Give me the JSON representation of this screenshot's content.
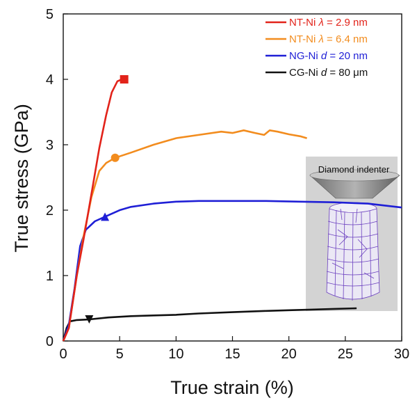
{
  "chart_data": {
    "type": "line",
    "xlabel": "True strain (%)",
    "ylabel": "True stress (GPa)",
    "xlim": [
      0,
      30
    ],
    "ylim": [
      0,
      5
    ],
    "xticks": [
      0,
      5,
      10,
      15,
      20,
      25,
      30
    ],
    "yticks": [
      0,
      1,
      2,
      3,
      4,
      5
    ],
    "grid": false,
    "legend_position": "top-right",
    "series": [
      {
        "name_parts": [
          "NT-Ni ",
          "λ",
          " = 2.9 nm"
        ],
        "color": "#e2231a",
        "marker": "square",
        "marker_at": [
          5.4,
          4.0
        ],
        "points": [
          [
            0,
            0
          ],
          [
            0.5,
            0.2
          ],
          [
            1.2,
            1.0
          ],
          [
            1.8,
            1.55
          ],
          [
            2.5,
            2.25
          ],
          [
            3.2,
            2.95
          ],
          [
            3.8,
            3.45
          ],
          [
            4.3,
            3.8
          ],
          [
            4.8,
            3.97
          ],
          [
            5.2,
            4.0
          ],
          [
            5.6,
            4.0
          ]
        ]
      },
      {
        "name_parts": [
          "NT-Ni ",
          "λ",
          " = 6.4 nm"
        ],
        "color": "#f28c1e",
        "marker": "circle",
        "marker_at": [
          4.6,
          2.8
        ],
        "points": [
          [
            0,
            0
          ],
          [
            0.5,
            0.2
          ],
          [
            1.2,
            1.0
          ],
          [
            1.8,
            1.6
          ],
          [
            2.5,
            2.2
          ],
          [
            3.2,
            2.6
          ],
          [
            3.8,
            2.72
          ],
          [
            4.6,
            2.8
          ],
          [
            6,
            2.88
          ],
          [
            8,
            3.0
          ],
          [
            10,
            3.1
          ],
          [
            12,
            3.15
          ],
          [
            14,
            3.2
          ],
          [
            15,
            3.18
          ],
          [
            16,
            3.22
          ],
          [
            17,
            3.18
          ],
          [
            17.8,
            3.15
          ],
          [
            18.3,
            3.22
          ],
          [
            19,
            3.2
          ],
          [
            20,
            3.16
          ],
          [
            21,
            3.13
          ],
          [
            21.6,
            3.1
          ]
        ]
      },
      {
        "name_parts": [
          "NG-Ni ",
          "d",
          " = 20 nm"
        ],
        "color": "#1f1fd6",
        "marker": "triangle-up",
        "marker_at": [
          3.7,
          1.9
        ],
        "points": [
          [
            0,
            0
          ],
          [
            0.5,
            0.25
          ],
          [
            1.0,
            0.8
          ],
          [
            1.5,
            1.45
          ],
          [
            2.0,
            1.7
          ],
          [
            2.8,
            1.83
          ],
          [
            3.7,
            1.9
          ],
          [
            5,
            2.0
          ],
          [
            6,
            2.05
          ],
          [
            8,
            2.1
          ],
          [
            10,
            2.13
          ],
          [
            12,
            2.14
          ],
          [
            15,
            2.14
          ],
          [
            18,
            2.14
          ],
          [
            21,
            2.13
          ],
          [
            24,
            2.12
          ],
          [
            27,
            2.1
          ],
          [
            30,
            2.04
          ]
        ]
      },
      {
        "name_parts": [
          "CG-Ni ",
          "d",
          " = 80 μm"
        ],
        "color": "#111111",
        "marker": "triangle-down",
        "marker_at": [
          2.3,
          0.33
        ],
        "points": [
          [
            0,
            0
          ],
          [
            0.3,
            0.2
          ],
          [
            0.6,
            0.3
          ],
          [
            1.2,
            0.32
          ],
          [
            2.3,
            0.33
          ],
          [
            4,
            0.36
          ],
          [
            6,
            0.38
          ],
          [
            8,
            0.39
          ],
          [
            10,
            0.4
          ],
          [
            12,
            0.42
          ],
          [
            15,
            0.44
          ],
          [
            18,
            0.46
          ],
          [
            20,
            0.47
          ],
          [
            22,
            0.48
          ],
          [
            24,
            0.49
          ],
          [
            26,
            0.5
          ]
        ]
      }
    ],
    "inset": {
      "title": "Diamond indenter"
    }
  }
}
